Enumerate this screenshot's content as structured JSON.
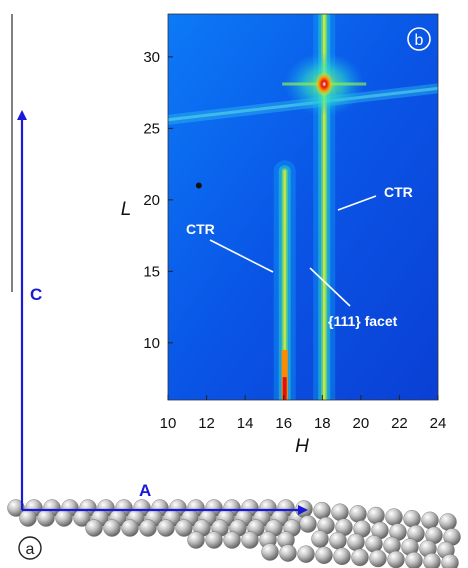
{
  "panels": {
    "a": "a",
    "b": "b"
  },
  "vectors": {
    "c_label": "C",
    "a_label": "A",
    "color": "#1a1ad6"
  },
  "annotations": {
    "ctr_right": "CTR",
    "ctr_left": "CTR",
    "facet": "{111} facet"
  },
  "chart_data": {
    "type": "heatmap",
    "xlabel": "H",
    "ylabel": "L",
    "xlim": [
      10,
      24
    ],
    "ylim": [
      6,
      33
    ],
    "xticks": [
      10,
      12,
      14,
      16,
      18,
      20,
      22,
      24
    ],
    "yticks": [
      10,
      15,
      20,
      25,
      30
    ],
    "features": {
      "rods": [
        {
          "h": 16.05,
          "l_from": 6,
          "l_to": 22
        },
        {
          "h": 18.1,
          "l_from": 6,
          "l_to": 33
        }
      ],
      "bragg_peak": {
        "h": 18.1,
        "l": 28.1
      },
      "facet_streak": {
        "from": [
          10,
          25.6
        ],
        "to": [
          24,
          27.8
        ]
      },
      "dark_spot": {
        "h": 11.6,
        "l": 21.0
      }
    },
    "colormap": [
      "#1a1acc",
      "#0f5cf2",
      "#12a8f5",
      "#2ee0c8",
      "#8cf050",
      "#f5f020",
      "#ff8a00",
      "#e01010"
    ]
  }
}
